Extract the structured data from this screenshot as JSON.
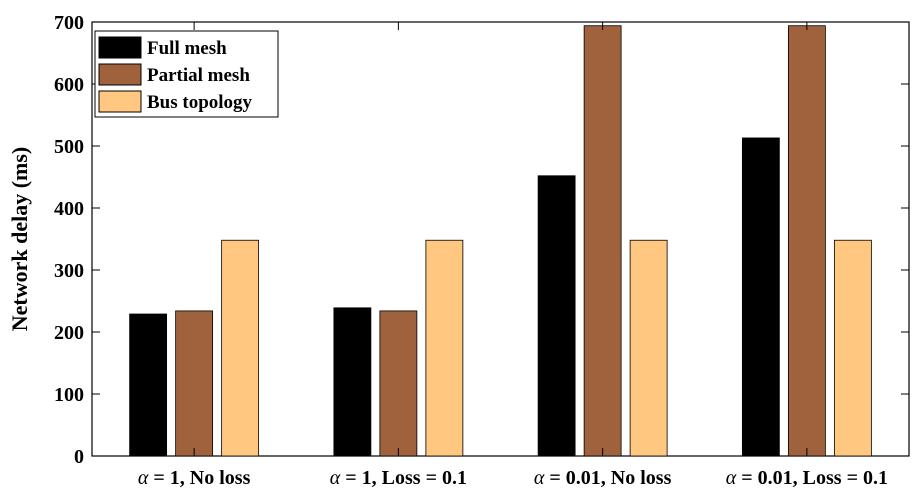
{
  "chart_data": {
    "type": "bar",
    "title": "",
    "xlabel": "",
    "ylabel": "Network delay (ms)",
    "ylim": [
      0,
      700
    ],
    "yticks": [
      0,
      100,
      200,
      300,
      400,
      500,
      600,
      700
    ],
    "grid": false,
    "legend_position": "top-left",
    "categories": [
      "α = 1, No loss",
      "α = 1, Loss = 0.1",
      "α = 0.01, No loss",
      "α = 0.01, Loss = 0.1"
    ],
    "series": [
      {
        "name": "Full mesh",
        "color": "#000000",
        "values": [
          229,
          239,
          452,
          513
        ]
      },
      {
        "name": "Partial mesh",
        "color": "#a0623c",
        "values": [
          234,
          234,
          694,
          694
        ]
      },
      {
        "name": "Bus topology",
        "color": "#ffc77f",
        "values": [
          348,
          348,
          348,
          348
        ]
      }
    ]
  }
}
